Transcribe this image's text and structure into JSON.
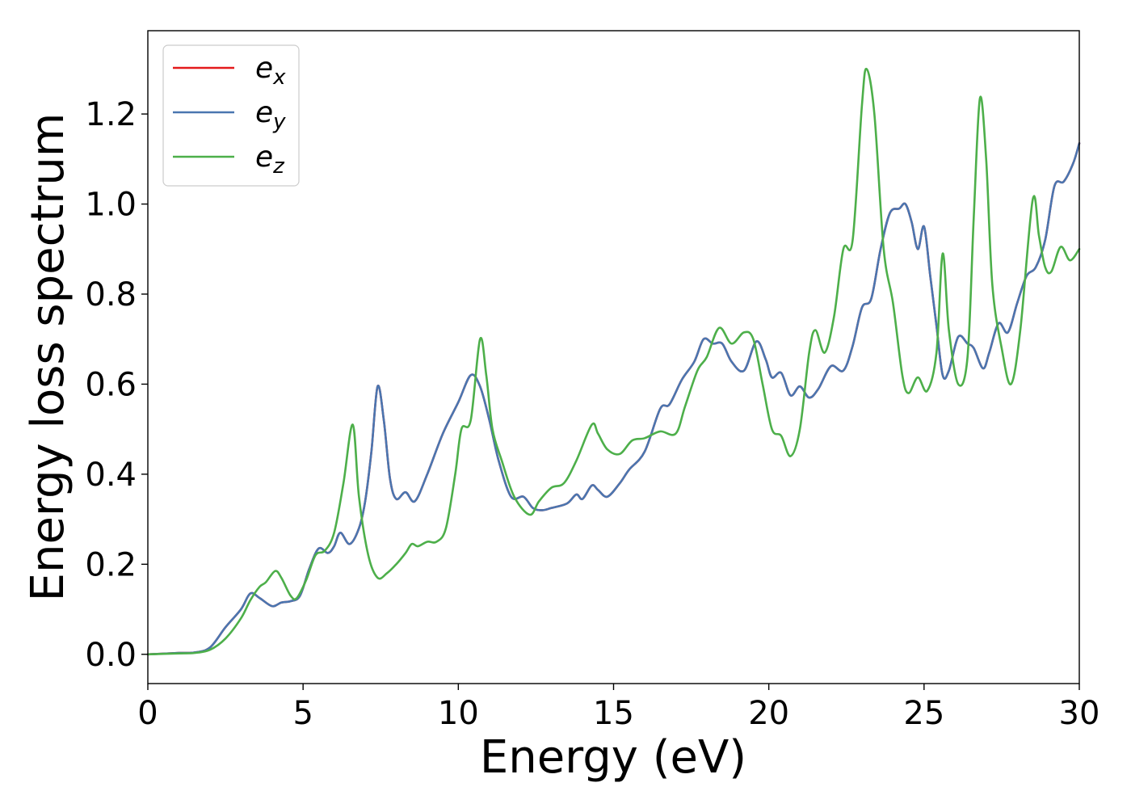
{
  "chart_data": {
    "type": "line",
    "title": "",
    "xlabel": "Energy (eV)",
    "ylabel": "Energy loss spectrum",
    "xlim": [
      0,
      30
    ],
    "ylim": [
      -0.065,
      1.385
    ],
    "xticks": [
      0,
      5,
      10,
      15,
      20,
      25,
      30
    ],
    "xtick_labels": [
      "0",
      "5",
      "10",
      "15",
      "20",
      "25",
      "30"
    ],
    "yticks": [
      0.0,
      0.2,
      0.4,
      0.6,
      0.8,
      1.0,
      1.2
    ],
    "ytick_labels": [
      "0.0",
      "0.2",
      "0.4",
      "0.6",
      "0.8",
      "1.0",
      "1.2"
    ],
    "grid": false,
    "legend_position": "top-left",
    "series": [
      {
        "name": "e_x",
        "label_base": "e",
        "label_sub": "x",
        "color": "#e41a1c",
        "points": [
          [
            0,
            0
          ],
          [
            1,
            0.003
          ],
          [
            1.5,
            0.004
          ],
          [
            2,
            0.015
          ],
          [
            2.5,
            0.06
          ],
          [
            3,
            0.1
          ],
          [
            3.3,
            0.135
          ],
          [
            3.6,
            0.125
          ],
          [
            4,
            0.107
          ],
          [
            4.3,
            0.115
          ],
          [
            4.6,
            0.118
          ],
          [
            4.9,
            0.13
          ],
          [
            5.2,
            0.19
          ],
          [
            5.5,
            0.235
          ],
          [
            5.8,
            0.225
          ],
          [
            6,
            0.24
          ],
          [
            6.2,
            0.27
          ],
          [
            6.5,
            0.245
          ],
          [
            6.8,
            0.28
          ],
          [
            7,
            0.34
          ],
          [
            7.2,
            0.45
          ],
          [
            7.4,
            0.595
          ],
          [
            7.6,
            0.52
          ],
          [
            7.8,
            0.39
          ],
          [
            8,
            0.345
          ],
          [
            8.3,
            0.36
          ],
          [
            8.6,
            0.34
          ],
          [
            9,
            0.4
          ],
          [
            9.5,
            0.49
          ],
          [
            10,
            0.56
          ],
          [
            10.4,
            0.62
          ],
          [
            10.7,
            0.595
          ],
          [
            11,
            0.52
          ],
          [
            11.3,
            0.43
          ],
          [
            11.7,
            0.35
          ],
          [
            12.1,
            0.35
          ],
          [
            12.4,
            0.325
          ],
          [
            12.7,
            0.32
          ],
          [
            13,
            0.325
          ],
          [
            13.5,
            0.335
          ],
          [
            13.8,
            0.355
          ],
          [
            14,
            0.345
          ],
          [
            14.3,
            0.375
          ],
          [
            14.5,
            0.365
          ],
          [
            14.8,
            0.35
          ],
          [
            15.2,
            0.38
          ],
          [
            15.5,
            0.41
          ],
          [
            16,
            0.45
          ],
          [
            16.5,
            0.545
          ],
          [
            16.8,
            0.555
          ],
          [
            17.2,
            0.61
          ],
          [
            17.6,
            0.65
          ],
          [
            17.9,
            0.7
          ],
          [
            18.2,
            0.69
          ],
          [
            18.5,
            0.69
          ],
          [
            18.8,
            0.65
          ],
          [
            19.2,
            0.63
          ],
          [
            19.6,
            0.695
          ],
          [
            19.9,
            0.655
          ],
          [
            20.1,
            0.615
          ],
          [
            20.4,
            0.625
          ],
          [
            20.7,
            0.575
          ],
          [
            21,
            0.595
          ],
          [
            21.3,
            0.57
          ],
          [
            21.6,
            0.59
          ],
          [
            22,
            0.64
          ],
          [
            22.4,
            0.63
          ],
          [
            22.7,
            0.685
          ],
          [
            23,
            0.77
          ],
          [
            23.3,
            0.79
          ],
          [
            23.6,
            0.9
          ],
          [
            23.9,
            0.98
          ],
          [
            24.2,
            0.99
          ],
          [
            24.4,
            1.0
          ],
          [
            24.6,
            0.96
          ],
          [
            24.8,
            0.9
          ],
          [
            25,
            0.95
          ],
          [
            25.2,
            0.84
          ],
          [
            25.4,
            0.73
          ],
          [
            25.6,
            0.62
          ],
          [
            25.8,
            0.63
          ],
          [
            26.1,
            0.705
          ],
          [
            26.4,
            0.69
          ],
          [
            26.6,
            0.68
          ],
          [
            26.9,
            0.635
          ],
          [
            27.1,
            0.67
          ],
          [
            27.4,
            0.735
          ],
          [
            27.7,
            0.715
          ],
          [
            28,
            0.78
          ],
          [
            28.3,
            0.84
          ],
          [
            28.6,
            0.86
          ],
          [
            28.9,
            0.92
          ],
          [
            29.2,
            1.04
          ],
          [
            29.5,
            1.05
          ],
          [
            29.8,
            1.09
          ],
          [
            30,
            1.135
          ]
        ]
      },
      {
        "name": "e_y",
        "label_base": "e",
        "label_sub": "y",
        "color": "#4a76b0",
        "points": [
          [
            0,
            0
          ],
          [
            1,
            0.003
          ],
          [
            1.5,
            0.004
          ],
          [
            2,
            0.015
          ],
          [
            2.5,
            0.06
          ],
          [
            3,
            0.1
          ],
          [
            3.3,
            0.135
          ],
          [
            3.6,
            0.125
          ],
          [
            4,
            0.107
          ],
          [
            4.3,
            0.115
          ],
          [
            4.6,
            0.118
          ],
          [
            4.9,
            0.13
          ],
          [
            5.2,
            0.19
          ],
          [
            5.5,
            0.235
          ],
          [
            5.8,
            0.225
          ],
          [
            6,
            0.24
          ],
          [
            6.2,
            0.27
          ],
          [
            6.5,
            0.245
          ],
          [
            6.8,
            0.28
          ],
          [
            7,
            0.34
          ],
          [
            7.2,
            0.45
          ],
          [
            7.4,
            0.595
          ],
          [
            7.6,
            0.52
          ],
          [
            7.8,
            0.39
          ],
          [
            8,
            0.345
          ],
          [
            8.3,
            0.36
          ],
          [
            8.6,
            0.34
          ],
          [
            9,
            0.4
          ],
          [
            9.5,
            0.49
          ],
          [
            10,
            0.56
          ],
          [
            10.4,
            0.62
          ],
          [
            10.7,
            0.595
          ],
          [
            11,
            0.52
          ],
          [
            11.3,
            0.43
          ],
          [
            11.7,
            0.35
          ],
          [
            12.1,
            0.35
          ],
          [
            12.4,
            0.325
          ],
          [
            12.7,
            0.32
          ],
          [
            13,
            0.325
          ],
          [
            13.5,
            0.335
          ],
          [
            13.8,
            0.355
          ],
          [
            14,
            0.345
          ],
          [
            14.3,
            0.375
          ],
          [
            14.5,
            0.365
          ],
          [
            14.8,
            0.35
          ],
          [
            15.2,
            0.38
          ],
          [
            15.5,
            0.41
          ],
          [
            16,
            0.45
          ],
          [
            16.5,
            0.545
          ],
          [
            16.8,
            0.555
          ],
          [
            17.2,
            0.61
          ],
          [
            17.6,
            0.65
          ],
          [
            17.9,
            0.7
          ],
          [
            18.2,
            0.69
          ],
          [
            18.5,
            0.69
          ],
          [
            18.8,
            0.65
          ],
          [
            19.2,
            0.63
          ],
          [
            19.6,
            0.695
          ],
          [
            19.9,
            0.655
          ],
          [
            20.1,
            0.615
          ],
          [
            20.4,
            0.625
          ],
          [
            20.7,
            0.575
          ],
          [
            21,
            0.595
          ],
          [
            21.3,
            0.57
          ],
          [
            21.6,
            0.59
          ],
          [
            22,
            0.64
          ],
          [
            22.4,
            0.63
          ],
          [
            22.7,
            0.685
          ],
          [
            23,
            0.77
          ],
          [
            23.3,
            0.79
          ],
          [
            23.6,
            0.9
          ],
          [
            23.9,
            0.98
          ],
          [
            24.2,
            0.99
          ],
          [
            24.4,
            1.0
          ],
          [
            24.6,
            0.96
          ],
          [
            24.8,
            0.9
          ],
          [
            25,
            0.95
          ],
          [
            25.2,
            0.84
          ],
          [
            25.4,
            0.73
          ],
          [
            25.6,
            0.62
          ],
          [
            25.8,
            0.63
          ],
          [
            26.1,
            0.705
          ],
          [
            26.4,
            0.69
          ],
          [
            26.6,
            0.68
          ],
          [
            26.9,
            0.635
          ],
          [
            27.1,
            0.67
          ],
          [
            27.4,
            0.735
          ],
          [
            27.7,
            0.715
          ],
          [
            28,
            0.78
          ],
          [
            28.3,
            0.84
          ],
          [
            28.6,
            0.86
          ],
          [
            28.9,
            0.92
          ],
          [
            29.2,
            1.04
          ],
          [
            29.5,
            1.05
          ],
          [
            29.8,
            1.09
          ],
          [
            30,
            1.135
          ]
        ]
      },
      {
        "name": "e_z",
        "label_base": "e",
        "label_sub": "z",
        "color": "#4daf4a",
        "points": [
          [
            0,
            0
          ],
          [
            1,
            0.002
          ],
          [
            1.5,
            0.003
          ],
          [
            2,
            0.01
          ],
          [
            2.5,
            0.035
          ],
          [
            3,
            0.08
          ],
          [
            3.3,
            0.12
          ],
          [
            3.6,
            0.15
          ],
          [
            3.8,
            0.16
          ],
          [
            4.1,
            0.185
          ],
          [
            4.3,
            0.17
          ],
          [
            4.6,
            0.13
          ],
          [
            4.8,
            0.125
          ],
          [
            5.1,
            0.165
          ],
          [
            5.4,
            0.22
          ],
          [
            5.7,
            0.23
          ],
          [
            6,
            0.27
          ],
          [
            6.3,
            0.38
          ],
          [
            6.6,
            0.51
          ],
          [
            6.8,
            0.35
          ],
          [
            7.1,
            0.22
          ],
          [
            7.4,
            0.17
          ],
          [
            7.7,
            0.18
          ],
          [
            8,
            0.2
          ],
          [
            8.3,
            0.225
          ],
          [
            8.5,
            0.245
          ],
          [
            8.7,
            0.24
          ],
          [
            9,
            0.25
          ],
          [
            9.3,
            0.25
          ],
          [
            9.6,
            0.28
          ],
          [
            9.9,
            0.4
          ],
          [
            10.1,
            0.5
          ],
          [
            10.4,
            0.52
          ],
          [
            10.7,
            0.7
          ],
          [
            10.9,
            0.62
          ],
          [
            11.1,
            0.5
          ],
          [
            11.4,
            0.43
          ],
          [
            11.8,
            0.35
          ],
          [
            12.3,
            0.31
          ],
          [
            12.6,
            0.34
          ],
          [
            13,
            0.37
          ],
          [
            13.4,
            0.38
          ],
          [
            13.8,
            0.43
          ],
          [
            14.3,
            0.51
          ],
          [
            14.5,
            0.49
          ],
          [
            14.8,
            0.455
          ],
          [
            15.2,
            0.445
          ],
          [
            15.6,
            0.475
          ],
          [
            16,
            0.48
          ],
          [
            16.5,
            0.495
          ],
          [
            17,
            0.49
          ],
          [
            17.3,
            0.55
          ],
          [
            17.7,
            0.63
          ],
          [
            18,
            0.66
          ],
          [
            18.4,
            0.725
          ],
          [
            18.8,
            0.69
          ],
          [
            19.2,
            0.715
          ],
          [
            19.5,
            0.7
          ],
          [
            19.8,
            0.6
          ],
          [
            20.1,
            0.5
          ],
          [
            20.4,
            0.485
          ],
          [
            20.7,
            0.44
          ],
          [
            21,
            0.5
          ],
          [
            21.3,
            0.67
          ],
          [
            21.5,
            0.72
          ],
          [
            21.8,
            0.67
          ],
          [
            22.1,
            0.75
          ],
          [
            22.4,
            0.9
          ],
          [
            22.7,
            0.92
          ],
          [
            23,
            1.22
          ],
          [
            23.15,
            1.3
          ],
          [
            23.4,
            1.2
          ],
          [
            23.7,
            0.9
          ],
          [
            24,
            0.78
          ],
          [
            24.3,
            0.62
          ],
          [
            24.5,
            0.58
          ],
          [
            24.8,
            0.615
          ],
          [
            25.1,
            0.585
          ],
          [
            25.4,
            0.67
          ],
          [
            25.6,
            0.89
          ],
          [
            25.8,
            0.72
          ],
          [
            26.1,
            0.6
          ],
          [
            26.4,
            0.66
          ],
          [
            26.6,
            0.97
          ],
          [
            26.8,
            1.235
          ],
          [
            27,
            1.1
          ],
          [
            27.2,
            0.82
          ],
          [
            27.5,
            0.68
          ],
          [
            27.8,
            0.6
          ],
          [
            28.1,
            0.72
          ],
          [
            28.5,
            1.01
          ],
          [
            28.7,
            0.93
          ],
          [
            28.9,
            0.86
          ],
          [
            29.1,
            0.85
          ],
          [
            29.4,
            0.905
          ],
          [
            29.7,
            0.875
          ],
          [
            30,
            0.9
          ]
        ]
      }
    ]
  }
}
